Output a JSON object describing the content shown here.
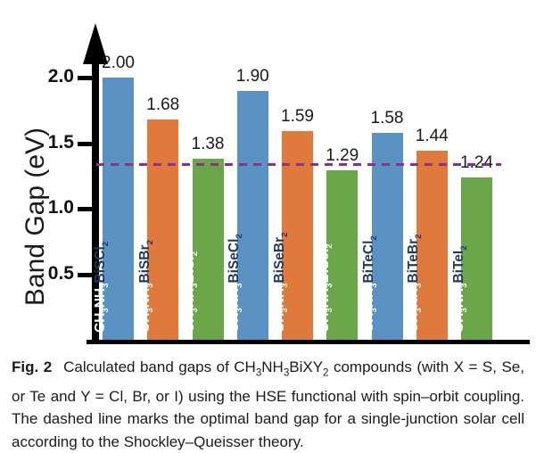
{
  "figure_caption": {
    "fig_label": "Fig. 2",
    "segments": [
      {
        "text": "Calculated band gaps of "
      },
      {
        "text": "CH3NH3BiXY2",
        "subscript_digits": true
      },
      {
        "text": " compounds (with X = S, Se, or Te and Y = Cl, Br, or I) using the HSE functional with spin–orbit coupling. The dashed line marks the optimal band gap for a single-junction solar cell according to the Shockley–Queisser theory."
      }
    ]
  },
  "chart_data": {
    "type": "bar",
    "title": "",
    "xlabel": "",
    "ylabel": "Band Gap (eV)",
    "ylim": [
      0,
      2.3
    ],
    "yticks": [
      0.5,
      1.0,
      1.5,
      2.0
    ],
    "ytick_labels": [
      "0.5",
      "1.0",
      "1.5",
      "2.0"
    ],
    "grid": false,
    "legend": false,
    "categories": [
      "CH3NH3BiSCl2",
      "CH3NH3BiSBr2",
      "CH3NH3BiSI2",
      "CH3NH3BiSeCl2",
      "CH3NH3BiSeBr2",
      "CH3NH3BiSeI2",
      "CH3NH3BiTeCl2",
      "CH3NH3BiTeBr2",
      "CH3NH3BiTeI2"
    ],
    "values": [
      2.0,
      1.68,
      1.38,
      1.9,
      1.59,
      1.29,
      1.58,
      1.44,
      1.24
    ],
    "bars": [
      {
        "prefix": "CH3NH3",
        "formula": "BiSCl2",
        "value_label": "2.00",
        "fill": "#5b92c4",
        "formula_color": "#1e3a5f"
      },
      {
        "prefix": "CH3NH3",
        "formula": "BiSBr2",
        "value_label": "1.68",
        "fill": "#e0793c",
        "formula_color": "#1e3a5f"
      },
      {
        "prefix": "CH3NH3",
        "formula": "BiSI2",
        "value_label": "1.38",
        "fill": "#6ca64a",
        "formula_color": "#ffffff"
      },
      {
        "prefix": "CH3NH3",
        "formula": "BiSeCl2",
        "value_label": "1.90",
        "fill": "#5b92c4",
        "formula_color": "#1e3a5f"
      },
      {
        "prefix": "CH3NH3",
        "formula": "BiSeBr2",
        "value_label": "1.59",
        "fill": "#e0793c",
        "formula_color": "#1e3a5f"
      },
      {
        "prefix": "CH3NH3",
        "formula": "BiSeI2",
        "value_label": "1.29",
        "fill": "#6ca64a",
        "formula_color": "#ffffff"
      },
      {
        "prefix": "CH3NH3",
        "formula": "BiTeCl2",
        "value_label": "1.58",
        "fill": "#5b92c4",
        "formula_color": "#1e3a5f"
      },
      {
        "prefix": "CH3NH3",
        "formula": "BiTeBr2",
        "value_label": "1.44",
        "fill": "#e0793c",
        "formula_color": "#1e3a5f"
      },
      {
        "prefix": "CH3NH3",
        "formula": "BiTeI2",
        "value_label": "1.24",
        "fill": "#6ca64a",
        "formula_color": "#1e3a5f"
      }
    ],
    "prefix_color": "#ffffff",
    "axis_color": "#000000",
    "reference_line": {
      "value": 1.34,
      "style": "dashed",
      "color": "#8e2f8c"
    }
  }
}
